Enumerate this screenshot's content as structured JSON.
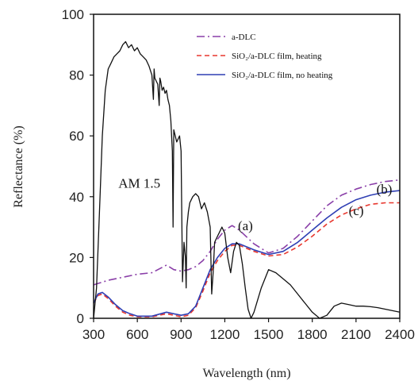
{
  "chart_data": {
    "type": "line",
    "xlabel": "Wavelength (nm)",
    "ylabel": "Reflectance (%)",
    "xlim": [
      300,
      2400
    ],
    "ylim": [
      0,
      100
    ],
    "x_ticks": [
      "300",
      "600",
      "900",
      "1200",
      "1500",
      "1800",
      "2100",
      "2400"
    ],
    "y_ticks": [
      "0",
      "20",
      "40",
      "60",
      "80",
      "100"
    ],
    "grid": false,
    "legend_position": "top-right",
    "legend": [
      {
        "label": "a-DLC",
        "series": "a-DLC"
      },
      {
        "label": "SiO₂/a-DLC film, heating",
        "series": "SiO2/a-DLC film, heating"
      },
      {
        "label": "SiO₂/a-DLC film, no heating",
        "series": "SiO2/a-DLC film, no heating"
      }
    ],
    "annotations": [
      {
        "text": "AM 1.5",
        "x": 470,
        "y": 43
      },
      {
        "text": "(a)",
        "x": 1290,
        "y": 29
      },
      {
        "text": "(b)",
        "x": 2240,
        "y": 41
      },
      {
        "text": "(c)",
        "x": 2050,
        "y": 34
      }
    ],
    "series": [
      {
        "name": "a-DLC",
        "color": "#8a3fa8",
        "dash": "dashdot",
        "x": [
          300,
          400,
          500,
          600,
          700,
          800,
          850,
          900,
          950,
          1000,
          1050,
          1100,
          1150,
          1200,
          1250,
          1300,
          1400,
          1500,
          1600,
          1700,
          1800,
          1900,
          2000,
          2100,
          2200,
          2300,
          2400
        ],
        "y": [
          11,
          12.5,
          13.5,
          14.5,
          15,
          17.5,
          16,
          15.5,
          16,
          17,
          19,
          22,
          26,
          29,
          30.5,
          29,
          24.5,
          21.5,
          23,
          27,
          32,
          37,
          40.5,
          42.5,
          44,
          45,
          45.5
        ]
      },
      {
        "name": "SiO2/a-DLC film, heating",
        "color": "#e8372e",
        "dash": "dashed",
        "x": [
          300,
          330,
          360,
          400,
          450,
          500,
          550,
          600,
          700,
          800,
          850,
          900,
          950,
          1000,
          1050,
          1100,
          1150,
          1200,
          1250,
          1300,
          1400,
          1500,
          1600,
          1700,
          1800,
          1900,
          2000,
          2100,
          2200,
          2300,
          2400
        ],
        "y": [
          5,
          7.5,
          8,
          6.5,
          4,
          2,
          1,
          0.5,
          0.5,
          1.5,
          1,
          0.5,
          1,
          3.5,
          9,
          15,
          19,
          22,
          24,
          24,
          22,
          20.5,
          21,
          23.5,
          27,
          31,
          34,
          36,
          37.5,
          38,
          38
        ]
      },
      {
        "name": "SiO2/a-DLC film, no heating",
        "color": "#2f3fb4",
        "dash": "solid",
        "x": [
          300,
          330,
          360,
          400,
          450,
          500,
          550,
          600,
          700,
          800,
          850,
          900,
          950,
          1000,
          1050,
          1100,
          1150,
          1200,
          1250,
          1300,
          1400,
          1500,
          1600,
          1700,
          1800,
          1900,
          2000,
          2100,
          2200,
          2300,
          2400
        ],
        "y": [
          5,
          8,
          8.5,
          7,
          4.5,
          2.5,
          1.5,
          0.7,
          0.7,
          2,
          1.5,
          1,
          1.5,
          4,
          10,
          16,
          20,
          23,
          24.5,
          24.5,
          22.5,
          21,
          22,
          25,
          29,
          33,
          36.5,
          39,
          40.5,
          41.5,
          42
        ]
      },
      {
        "name": "AM 1.5",
        "color": "#111111",
        "dash": "solid",
        "x": [
          300,
          320,
          340,
          360,
          380,
          400,
          420,
          440,
          460,
          480,
          500,
          520,
          540,
          560,
          580,
          600,
          620,
          640,
          660,
          680,
          700,
          710,
          715,
          720,
          740,
          750,
          755,
          760,
          770,
          780,
          790,
          800,
          810,
          820,
          830,
          840,
          845,
          850,
          870,
          890,
          900,
          910,
          920,
          930,
          935,
          940,
          950,
          960,
          980,
          1000,
          1020,
          1040,
          1060,
          1080,
          1100,
          1110,
          1120,
          1130,
          1140,
          1150,
          1160,
          1180,
          1200,
          1220,
          1240,
          1260,
          1280,
          1300,
          1320,
          1340,
          1360,
          1380,
          1400,
          1450,
          1500,
          1550,
          1600,
          1650,
          1700,
          1750,
          1800,
          1850,
          1900,
          1950,
          2000,
          2050,
          2100,
          2150,
          2200,
          2250,
          2300,
          2350,
          2400
        ],
        "y": [
          0,
          10,
          35,
          60,
          75,
          82,
          84,
          86,
          87,
          88,
          90,
          91,
          89,
          90,
          88,
          89,
          87,
          86,
          85,
          83,
          80,
          72,
          82,
          79,
          77,
          70,
          79,
          78,
          75,
          76,
          74,
          75,
          72,
          70,
          65,
          55,
          30,
          62,
          58,
          60,
          55,
          12,
          25,
          20,
          10,
          30,
          35,
          38,
          40,
          41,
          40,
          36,
          38,
          35,
          30,
          8,
          15,
          25,
          26,
          27,
          28,
          30,
          28,
          20,
          15,
          22,
          25,
          24,
          18,
          10,
          3,
          0,
          2,
          10,
          16,
          15,
          13,
          11,
          8,
          5,
          2,
          0,
          1,
          4,
          5,
          4.5,
          4,
          4,
          3.8,
          3.5,
          3,
          2.5,
          2
        ]
      }
    ]
  }
}
